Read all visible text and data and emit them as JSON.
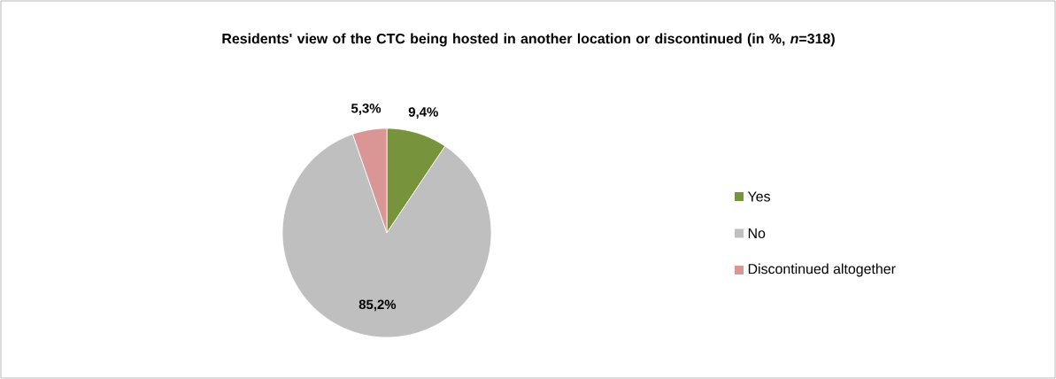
{
  "chart_data": {
    "type": "pie",
    "title": "Residents' view of the CTC being hosted in another location or discontinued (in %, *n*=318)",
    "categories": [
      "Yes",
      "No",
      "Discontinued altogether"
    ],
    "values": [
      9.4,
      85.2,
      5.3
    ],
    "value_labels": [
      "9,4%",
      "85,2%",
      "5,3%"
    ],
    "colors": [
      "#77933c",
      "#bfbfbf",
      "#d99694"
    ],
    "legend": "right"
  }
}
